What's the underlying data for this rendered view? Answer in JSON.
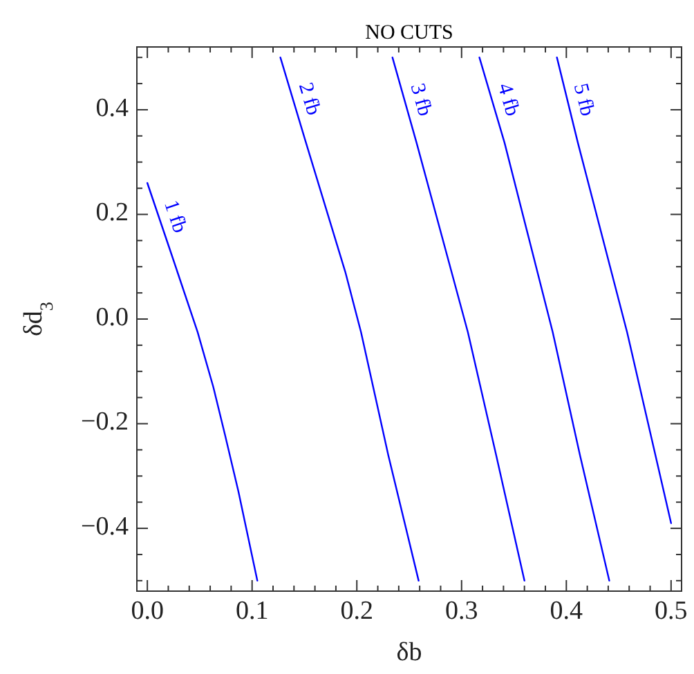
{
  "chart_data": {
    "type": "line",
    "title": "NO CUTS",
    "xlabel": "δb",
    "ylabel": "δd$_{3}$",
    "xlim": [
      -0.01,
      0.51
    ],
    "ylim": [
      -0.52,
      0.52
    ],
    "xticks": [
      {
        "value": 0,
        "label": "0.0"
      },
      {
        "value": 0.02,
        "label": null
      },
      {
        "value": 0.04,
        "label": null
      },
      {
        "value": 0.06,
        "label": null
      },
      {
        "value": 0.08,
        "label": null
      },
      {
        "value": 0.1,
        "label": "0.1"
      },
      {
        "value": 0.12,
        "label": null
      },
      {
        "value": 0.14,
        "label": null
      },
      {
        "value": 0.16,
        "label": null
      },
      {
        "value": 0.18,
        "label": null
      },
      {
        "value": 0.2,
        "label": "0.2"
      },
      {
        "value": 0.22,
        "label": null
      },
      {
        "value": 0.24,
        "label": null
      },
      {
        "value": 0.26,
        "label": null
      },
      {
        "value": 0.28,
        "label": null
      },
      {
        "value": 0.3,
        "label": "0.3"
      },
      {
        "value": 0.32,
        "label": null
      },
      {
        "value": 0.34,
        "label": null
      },
      {
        "value": 0.36,
        "label": null
      },
      {
        "value": 0.38,
        "label": null
      },
      {
        "value": 0.4,
        "label": "0.4"
      },
      {
        "value": 0.42,
        "label": null
      },
      {
        "value": 0.44,
        "label": null
      },
      {
        "value": 0.46,
        "label": null
      },
      {
        "value": 0.48,
        "label": null
      },
      {
        "value": 0.5,
        "label": "0.5"
      }
    ],
    "yticks": [
      {
        "value": -0.5,
        "label": null
      },
      {
        "value": -0.45,
        "label": null
      },
      {
        "value": -0.4,
        "label": "−0.4"
      },
      {
        "value": -0.35,
        "label": null
      },
      {
        "value": -0.3,
        "label": null
      },
      {
        "value": -0.25,
        "label": null
      },
      {
        "value": -0.2,
        "label": "−0.2"
      },
      {
        "value": -0.15,
        "label": null
      },
      {
        "value": -0.1,
        "label": null
      },
      {
        "value": -0.05,
        "label": null
      },
      {
        "value": 0,
        "label": "0.0"
      },
      {
        "value": 0.05,
        "label": null
      },
      {
        "value": 0.1,
        "label": null
      },
      {
        "value": 0.15,
        "label": null
      },
      {
        "value": 0.2,
        "label": "0.2"
      },
      {
        "value": 0.25,
        "label": null
      },
      {
        "value": 0.3,
        "label": null
      },
      {
        "value": 0.35,
        "label": null
      },
      {
        "value": 0.4,
        "label": "0.4"
      },
      {
        "value": 0.45,
        "label": null
      },
      {
        "value": 0.5,
        "label": null
      }
    ],
    "grid": false,
    "marker": "none",
    "line_style": "solid",
    "series": [
      {
        "name": "1 fb",
        "color": "#0000ff",
        "x": [
          0,
          0.022,
          0.048,
          0.063,
          0.074,
          0.087,
          0.105
        ],
        "values": [
          0.26,
          0.13,
          -0.025,
          -0.13,
          -0.22,
          -0.33,
          -0.5
        ]
      },
      {
        "name": "2 fb",
        "color": "#0000ff",
        "x": [
          0.127,
          0.151,
          0.189,
          0.204,
          0.23,
          0.259
        ],
        "values": [
          0.5,
          0.34,
          0.09,
          -0.025,
          -0.26,
          -0.5
        ]
      },
      {
        "name": "3 fb",
        "color": "#0000ff",
        "x": [
          0.234,
          0.257,
          0.306,
          0.333,
          0.36
        ],
        "values": [
          0.5,
          0.337,
          -0.025,
          -0.26,
          -0.5
        ]
      },
      {
        "name": "4 fb",
        "color": "#0000ff",
        "x": [
          0.317,
          0.341,
          0.387,
          0.413,
          0.441
        ],
        "values": [
          0.5,
          0.337,
          -0.025,
          -0.26,
          -0.5
        ]
      },
      {
        "name": "5 fb",
        "color": "#0000ff",
        "x": [
          0.391,
          0.411,
          0.458,
          0.5
        ],
        "values": [
          0.5,
          0.337,
          -0.025,
          -0.39
        ]
      }
    ]
  }
}
